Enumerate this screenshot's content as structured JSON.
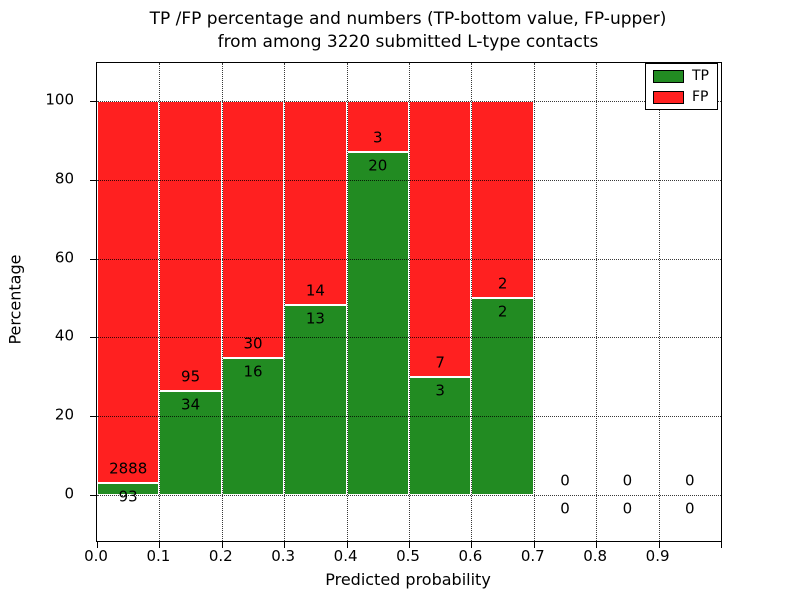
{
  "figure": {
    "title_line1": "TP /FP percentage and numbers (TP-bottom value, FP-upper)",
    "title_line2": "from among 3220 submitted L-type contacts"
  },
  "chart_data": {
    "type": "bar",
    "stacked": true,
    "title": "TP /FP percentage and numbers (TP-bottom value, FP-upper) from among 3220 submitted L-type contacts",
    "xlabel": "Predicted probability",
    "ylabel": "Percentage",
    "total_submitted": 3220,
    "x_bins": [
      "0.0-0.1",
      "0.1-0.2",
      "0.2-0.3",
      "0.3-0.4",
      "0.4-0.5",
      "0.5-0.6",
      "0.6-0.7",
      "0.7-0.8",
      "0.8-0.9",
      "0.9-1.0"
    ],
    "series": [
      {
        "name": "TP",
        "color": "#228b22",
        "counts": [
          93,
          34,
          16,
          13,
          20,
          3,
          2,
          0,
          0,
          0
        ],
        "percent": [
          3.12,
          26.36,
          34.78,
          48.15,
          86.96,
          30.0,
          50.0,
          0,
          0,
          0
        ]
      },
      {
        "name": "FP",
        "color": "#ff2020",
        "counts": [
          2888,
          95,
          30,
          14,
          3,
          7,
          2,
          0,
          0,
          0
        ],
        "percent": [
          96.88,
          73.64,
          65.22,
          51.85,
          13.04,
          70.0,
          50.0,
          0,
          0,
          0
        ]
      }
    ],
    "yticks": [
      0,
      20,
      40,
      60,
      80,
      100
    ],
    "xticks": [
      0.0,
      0.1,
      0.2,
      0.3,
      0.4,
      0.5,
      0.6,
      0.7,
      0.8,
      0.9
    ],
    "xtick_labels": [
      "0.0",
      "0.1",
      "0.2",
      "0.3",
      "0.4",
      "0.5",
      "0.6",
      "0.7",
      "0.8",
      "0.9"
    ],
    "xlim": [
      0.0,
      1.0
    ],
    "ylim": [
      -12,
      110
    ],
    "grid": "dotted",
    "legend_position": "upper right"
  },
  "legend": {
    "items": [
      {
        "label": "TP",
        "color": "#228b22"
      },
      {
        "label": "FP",
        "color": "#ff2020"
      }
    ]
  }
}
